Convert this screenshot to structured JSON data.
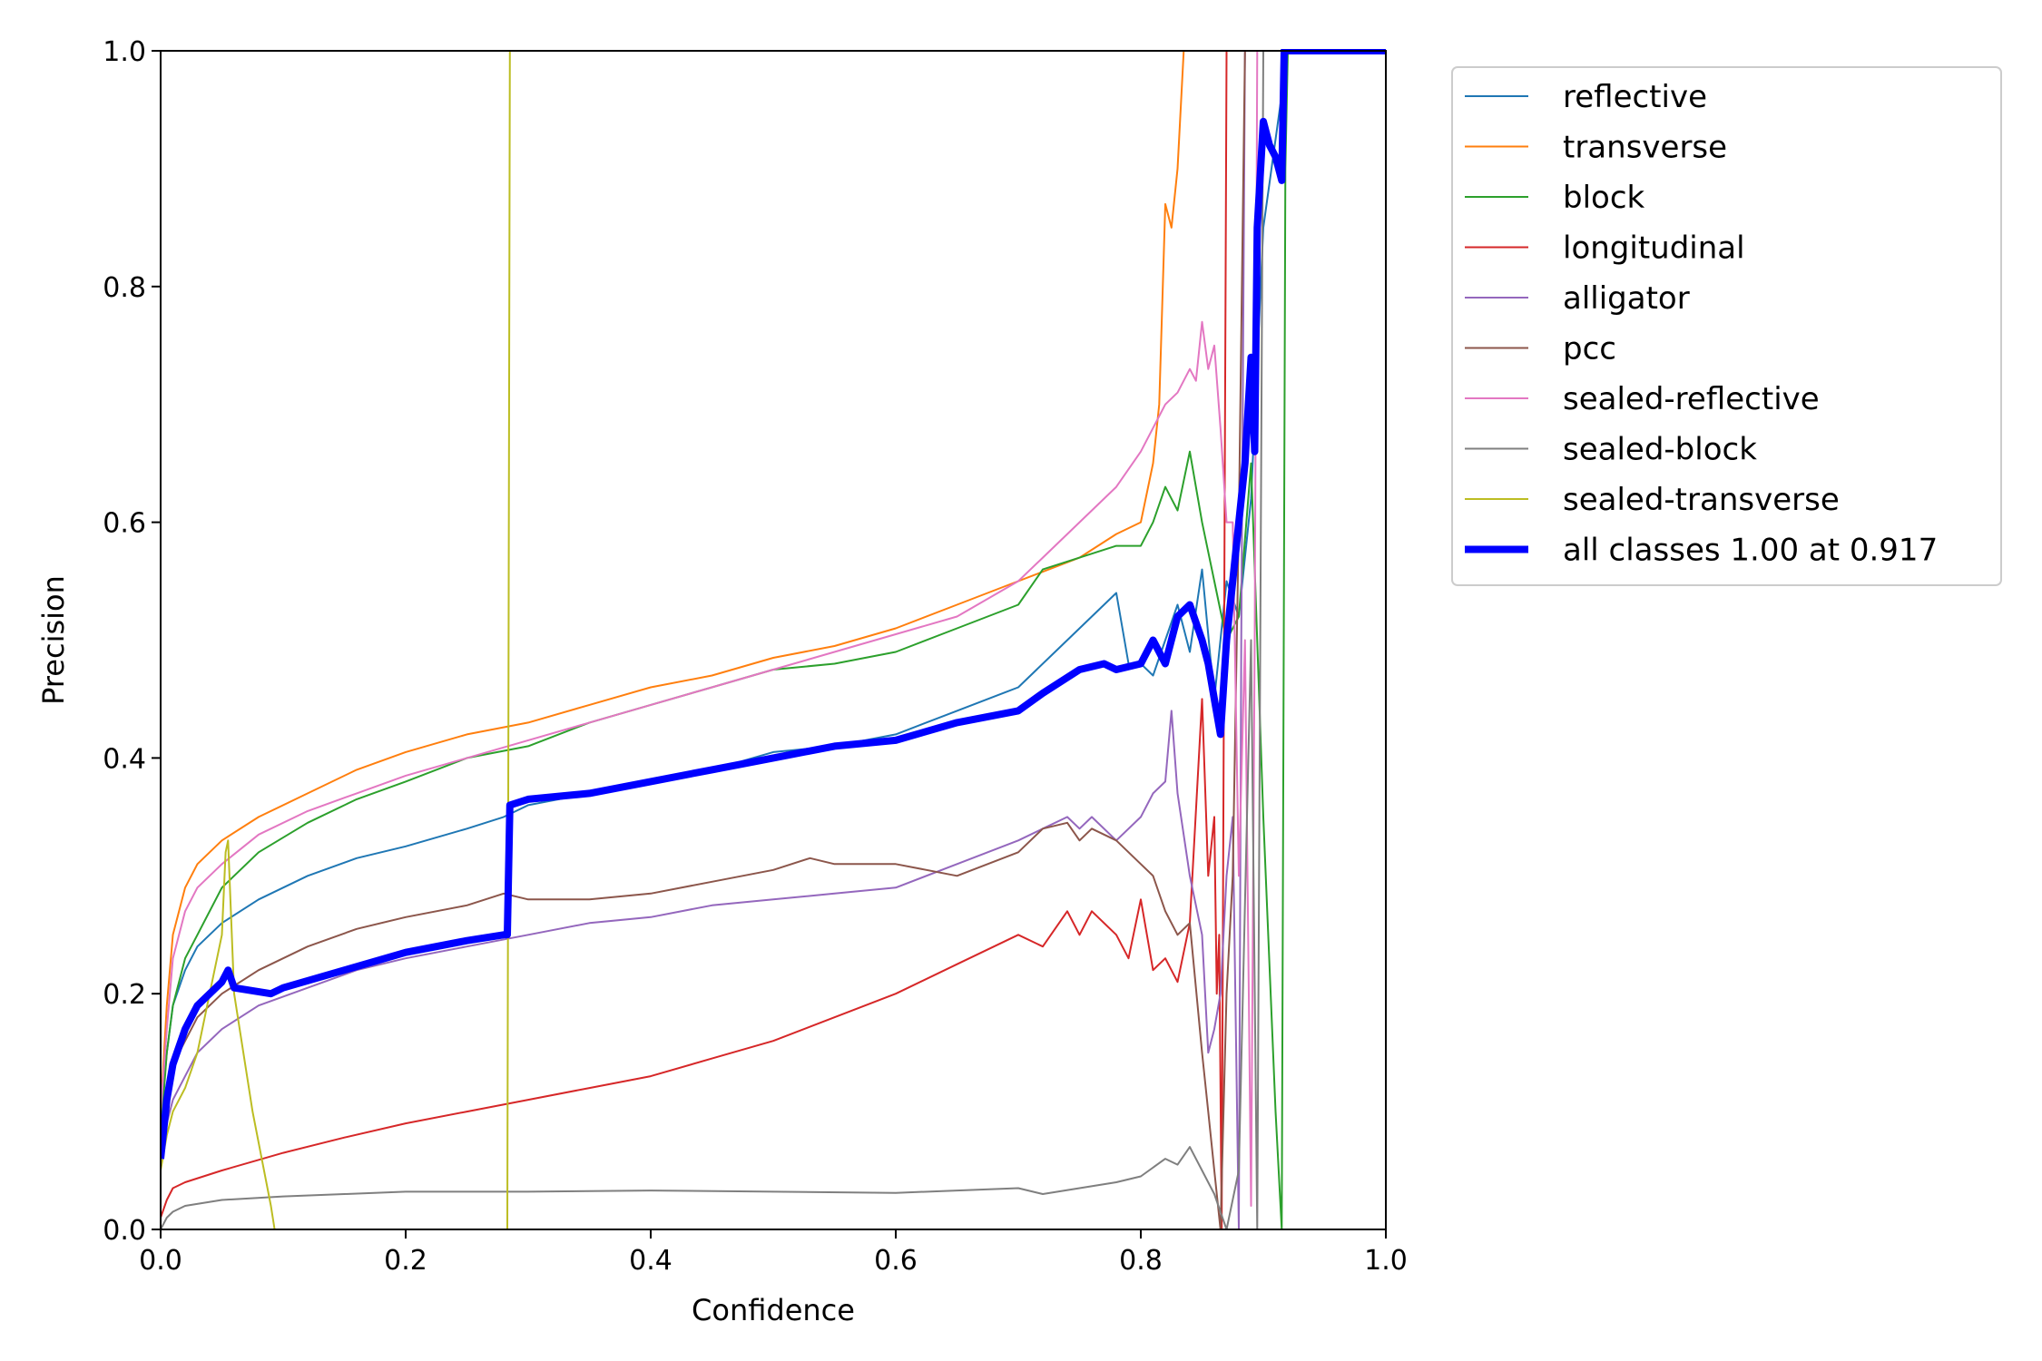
{
  "chart_data": {
    "type": "line",
    "title": "",
    "xlabel": "Confidence",
    "ylabel": "Precision",
    "xlim": [
      0,
      1
    ],
    "ylim": [
      0,
      1
    ],
    "x_ticks": [
      "0.0",
      "0.2",
      "0.4",
      "0.6",
      "0.8",
      "1.0"
    ],
    "y_ticks": [
      "0.0",
      "0.2",
      "0.4",
      "0.6",
      "0.8",
      "1.0"
    ],
    "grid": false,
    "legend_position": "outside-top-right",
    "series": [
      {
        "name": "reflective",
        "color": "#1f77b4",
        "width": 2,
        "x": [
          0,
          0.005,
          0.01,
          0.02,
          0.03,
          0.05,
          0.08,
          0.12,
          0.16,
          0.2,
          0.25,
          0.28,
          0.3,
          0.35,
          0.4,
          0.45,
          0.5,
          0.55,
          0.6,
          0.65,
          0.7,
          0.73,
          0.75,
          0.77,
          0.78,
          0.79,
          0.8,
          0.81,
          0.82,
          0.83,
          0.84,
          0.85,
          0.86,
          0.87,
          0.88,
          0.89,
          0.9,
          0.92,
          1.0
        ],
        "y": [
          0.09,
          0.15,
          0.19,
          0.22,
          0.24,
          0.26,
          0.28,
          0.3,
          0.315,
          0.325,
          0.34,
          0.35,
          0.36,
          0.37,
          0.38,
          0.39,
          0.405,
          0.41,
          0.42,
          0.44,
          0.46,
          0.49,
          0.51,
          0.53,
          0.54,
          0.48,
          0.48,
          0.47,
          0.5,
          0.53,
          0.49,
          0.56,
          0.45,
          0.55,
          0.52,
          0.62,
          0.85,
          1.0,
          1.0
        ]
      },
      {
        "name": "transverse",
        "color": "#ff7f0e",
        "width": 2,
        "x": [
          0,
          0.005,
          0.01,
          0.02,
          0.03,
          0.05,
          0.08,
          0.12,
          0.16,
          0.2,
          0.25,
          0.3,
          0.35,
          0.4,
          0.45,
          0.5,
          0.55,
          0.6,
          0.65,
          0.7,
          0.75,
          0.78,
          0.8,
          0.81,
          0.815,
          0.82,
          0.825,
          0.83,
          0.835,
          1.0
        ],
        "y": [
          0.1,
          0.19,
          0.25,
          0.29,
          0.31,
          0.33,
          0.35,
          0.37,
          0.39,
          0.405,
          0.42,
          0.43,
          0.445,
          0.46,
          0.47,
          0.485,
          0.495,
          0.51,
          0.53,
          0.55,
          0.57,
          0.59,
          0.6,
          0.65,
          0.7,
          0.87,
          0.85,
          0.9,
          1.0,
          1.0
        ]
      },
      {
        "name": "block",
        "color": "#2ca02c",
        "width": 2,
        "x": [
          0,
          0.005,
          0.01,
          0.02,
          0.03,
          0.05,
          0.08,
          0.12,
          0.16,
          0.2,
          0.25,
          0.3,
          0.35,
          0.4,
          0.45,
          0.5,
          0.55,
          0.6,
          0.65,
          0.7,
          0.72,
          0.75,
          0.78,
          0.8,
          0.81,
          0.82,
          0.83,
          0.84,
          0.85,
          0.86,
          0.87,
          0.88,
          0.89,
          0.9,
          0.91,
          0.915,
          0.918,
          0.92,
          1.0
        ],
        "y": [
          0.08,
          0.15,
          0.19,
          0.23,
          0.25,
          0.29,
          0.32,
          0.345,
          0.365,
          0.38,
          0.4,
          0.41,
          0.43,
          0.445,
          0.46,
          0.475,
          0.48,
          0.49,
          0.51,
          0.53,
          0.56,
          0.57,
          0.58,
          0.58,
          0.6,
          0.63,
          0.61,
          0.66,
          0.6,
          0.55,
          0.5,
          0.52,
          0.65,
          0.35,
          0.1,
          0.0,
          0.9,
          1.0,
          1.0
        ]
      },
      {
        "name": "longitudinal",
        "color": "#d62728",
        "width": 2,
        "x": [
          0,
          0.005,
          0.01,
          0.02,
          0.05,
          0.1,
          0.15,
          0.2,
          0.25,
          0.3,
          0.35,
          0.4,
          0.45,
          0.5,
          0.55,
          0.6,
          0.65,
          0.7,
          0.72,
          0.74,
          0.75,
          0.76,
          0.78,
          0.79,
          0.8,
          0.81,
          0.82,
          0.83,
          0.84,
          0.85,
          0.855,
          0.86,
          0.862,
          0.864,
          0.866,
          0.87,
          1.0
        ],
        "y": [
          0.01,
          0.025,
          0.035,
          0.04,
          0.05,
          0.065,
          0.078,
          0.09,
          0.1,
          0.11,
          0.12,
          0.13,
          0.145,
          0.16,
          0.18,
          0.2,
          0.225,
          0.25,
          0.24,
          0.27,
          0.25,
          0.27,
          0.25,
          0.23,
          0.28,
          0.22,
          0.23,
          0.21,
          0.26,
          0.45,
          0.3,
          0.35,
          0.2,
          0.25,
          0.0,
          1.0,
          1.0
        ]
      },
      {
        "name": "alligator",
        "color": "#9467bd",
        "width": 2,
        "x": [
          0,
          0.005,
          0.01,
          0.02,
          0.03,
          0.05,
          0.08,
          0.12,
          0.16,
          0.2,
          0.25,
          0.3,
          0.35,
          0.4,
          0.45,
          0.5,
          0.55,
          0.6,
          0.65,
          0.7,
          0.72,
          0.74,
          0.75,
          0.76,
          0.78,
          0.8,
          0.81,
          0.82,
          0.825,
          0.83,
          0.84,
          0.85,
          0.855,
          0.86,
          0.865,
          0.87,
          0.875,
          0.88,
          0.882,
          0.885,
          1.0
        ],
        "y": [
          0.06,
          0.09,
          0.11,
          0.13,
          0.15,
          0.17,
          0.19,
          0.205,
          0.22,
          0.23,
          0.24,
          0.25,
          0.26,
          0.265,
          0.275,
          0.28,
          0.285,
          0.29,
          0.31,
          0.33,
          0.34,
          0.35,
          0.34,
          0.35,
          0.33,
          0.35,
          0.37,
          0.38,
          0.44,
          0.37,
          0.3,
          0.25,
          0.15,
          0.17,
          0.2,
          0.3,
          0.35,
          0.0,
          0.5,
          1.0,
          1.0
        ]
      },
      {
        "name": "pcc",
        "color": "#8c564b",
        "width": 2,
        "x": [
          0,
          0.005,
          0.01,
          0.02,
          0.03,
          0.05,
          0.08,
          0.12,
          0.16,
          0.2,
          0.25,
          0.28,
          0.3,
          0.35,
          0.4,
          0.45,
          0.5,
          0.53,
          0.55,
          0.6,
          0.65,
          0.7,
          0.72,
          0.74,
          0.75,
          0.76,
          0.78,
          0.8,
          0.81,
          0.82,
          0.83,
          0.84,
          0.85,
          0.855,
          0.86,
          0.865,
          0.87,
          0.875,
          0.88,
          0.885,
          1.0
        ],
        "y": [
          0.07,
          0.11,
          0.14,
          0.16,
          0.18,
          0.2,
          0.22,
          0.24,
          0.255,
          0.265,
          0.275,
          0.285,
          0.28,
          0.28,
          0.285,
          0.295,
          0.305,
          0.315,
          0.31,
          0.31,
          0.3,
          0.32,
          0.34,
          0.345,
          0.33,
          0.34,
          0.33,
          0.31,
          0.3,
          0.27,
          0.25,
          0.26,
          0.15,
          0.1,
          0.05,
          0.0,
          0.2,
          0.3,
          0.6,
          1.0,
          1.0
        ]
      },
      {
        "name": "sealed-reflective",
        "color": "#e377c2",
        "width": 2,
        "x": [
          0,
          0.005,
          0.01,
          0.02,
          0.03,
          0.05,
          0.08,
          0.12,
          0.16,
          0.2,
          0.25,
          0.3,
          0.35,
          0.4,
          0.45,
          0.5,
          0.55,
          0.6,
          0.65,
          0.7,
          0.72,
          0.75,
          0.78,
          0.8,
          0.81,
          0.82,
          0.83,
          0.84,
          0.845,
          0.85,
          0.855,
          0.86,
          0.865,
          0.87,
          0.875,
          0.88,
          0.885,
          0.89,
          0.893,
          0.895,
          0.9,
          1.0
        ],
        "y": [
          0.1,
          0.17,
          0.23,
          0.27,
          0.29,
          0.31,
          0.335,
          0.355,
          0.37,
          0.385,
          0.4,
          0.415,
          0.43,
          0.445,
          0.46,
          0.475,
          0.49,
          0.505,
          0.52,
          0.55,
          0.57,
          0.6,
          0.63,
          0.66,
          0.68,
          0.7,
          0.71,
          0.73,
          0.72,
          0.77,
          0.73,
          0.75,
          0.68,
          0.6,
          0.6,
          0.3,
          0.5,
          0.02,
          0.5,
          1.0,
          1.0,
          1.0
        ]
      },
      {
        "name": "sealed-block",
        "color": "#7f7f7f",
        "width": 2,
        "x": [
          0,
          0.005,
          0.01,
          0.02,
          0.05,
          0.1,
          0.15,
          0.2,
          0.3,
          0.4,
          0.5,
          0.6,
          0.65,
          0.7,
          0.72,
          0.75,
          0.78,
          0.8,
          0.82,
          0.83,
          0.84,
          0.85,
          0.86,
          0.87,
          0.88,
          0.89,
          0.895,
          0.9,
          0.92,
          1.0
        ],
        "y": [
          0.0,
          0.01,
          0.015,
          0.02,
          0.025,
          0.028,
          0.03,
          0.032,
          0.032,
          0.033,
          0.032,
          0.031,
          0.033,
          0.035,
          0.03,
          0.035,
          0.04,
          0.045,
          0.06,
          0.055,
          0.07,
          0.05,
          0.03,
          0.0,
          0.05,
          0.5,
          0.0,
          1.0,
          1.0,
          1.0
        ]
      },
      {
        "name": "sealed-transverse",
        "color": "#bcbd22",
        "width": 2,
        "x": [
          0,
          0.005,
          0.01,
          0.02,
          0.03,
          0.04,
          0.05,
          0.053,
          0.055,
          0.06,
          0.075,
          0.09,
          0.093,
          0.2,
          0.283,
          0.285,
          0.287,
          1.0
        ],
        "y": [
          0.05,
          0.08,
          0.1,
          0.12,
          0.15,
          0.2,
          0.25,
          0.32,
          0.33,
          0.2,
          0.1,
          0.02,
          0.0,
          0.0,
          0.0,
          1.0,
          1.0,
          1.0
        ]
      },
      {
        "name": "all classes 1.00 at 0.917",
        "color": "#0000ff",
        "width": 8,
        "x": [
          0,
          0.005,
          0.01,
          0.02,
          0.03,
          0.04,
          0.05,
          0.055,
          0.06,
          0.09,
          0.1,
          0.15,
          0.2,
          0.25,
          0.28,
          0.283,
          0.285,
          0.3,
          0.35,
          0.4,
          0.45,
          0.5,
          0.55,
          0.6,
          0.65,
          0.7,
          0.72,
          0.75,
          0.77,
          0.78,
          0.8,
          0.81,
          0.82,
          0.83,
          0.84,
          0.85,
          0.855,
          0.86,
          0.865,
          0.87,
          0.875,
          0.88,
          0.885,
          0.89,
          0.893,
          0.895,
          0.9,
          0.905,
          0.91,
          0.915,
          0.917,
          0.92,
          1.0
        ],
        "y": [
          0.06,
          0.11,
          0.14,
          0.17,
          0.19,
          0.2,
          0.21,
          0.22,
          0.205,
          0.2,
          0.205,
          0.22,
          0.235,
          0.245,
          0.25,
          0.25,
          0.36,
          0.365,
          0.37,
          0.38,
          0.39,
          0.4,
          0.41,
          0.415,
          0.43,
          0.44,
          0.455,
          0.475,
          0.48,
          0.475,
          0.48,
          0.5,
          0.48,
          0.52,
          0.53,
          0.5,
          0.48,
          0.45,
          0.42,
          0.5,
          0.55,
          0.6,
          0.65,
          0.74,
          0.66,
          0.85,
          0.94,
          0.92,
          0.91,
          0.89,
          1.0,
          1.0,
          1.0
        ]
      }
    ]
  }
}
